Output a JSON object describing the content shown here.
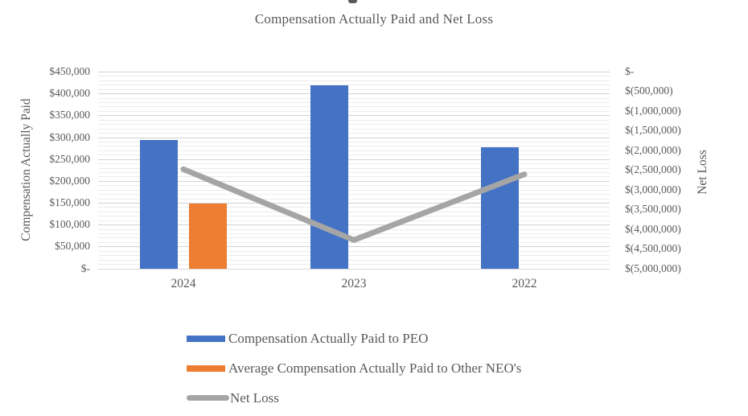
{
  "chart_data": {
    "type": "bar",
    "subtype": "combo-bar-line",
    "title": "Compensation Actually Paid and Net Loss",
    "categories": [
      "2024",
      "2023",
      "2022"
    ],
    "series": [
      {
        "name": "Compensation Actually Paid to PEO",
        "kind": "bar",
        "axis": "left",
        "color": "#4472C4",
        "values": [
          294000,
          420000,
          278000
        ]
      },
      {
        "name": "Average Compensation Actually Paid to Other NEO's",
        "kind": "bar",
        "axis": "left",
        "color": "#ED7D31",
        "values": [
          150000,
          null,
          null
        ]
      },
      {
        "name": "Net Loss",
        "kind": "line",
        "axis": "right",
        "color": "#A5A5A5",
        "values": [
          -2480000,
          -4280000,
          -2610000
        ]
      }
    ],
    "left_axis": {
      "label": "Compensation Actually Paid",
      "min": 0,
      "max": 450000,
      "major_unit": 50000,
      "minor_unit": 10000,
      "tick_labels": [
        "$450,000",
        "$400,000",
        "$350,000",
        "$300,000",
        "$250,000",
        "$200,000",
        "$150,000",
        "$100,000",
        "$50,000",
        "$-"
      ]
    },
    "right_axis": {
      "label": "Net Loss",
      "min": -5000000,
      "max": 0,
      "major_unit": 500000,
      "tick_labels": [
        "$-",
        "$(500,000)",
        "$(1,000,000)",
        "$(1,500,000)",
        "$(2,000,000)",
        "$(2,500,000)",
        "$(3,000,000)",
        "$(3,500,000)",
        "$(4,000,000)",
        "$(4,500,000)",
        "$(5,000,000)"
      ]
    },
    "grid": "major-and-minor-horizontal",
    "legend_position": "bottom-left-stacked",
    "colors": {
      "peo_bar": "#4472C4",
      "neo_bar": "#ED7D31",
      "net_loss_line": "#A5A5A5",
      "text": "#595959",
      "major_grid": "#D2D2D2",
      "minor_grid": "#ECECEC",
      "axis_line": "#D6D6D6"
    }
  }
}
